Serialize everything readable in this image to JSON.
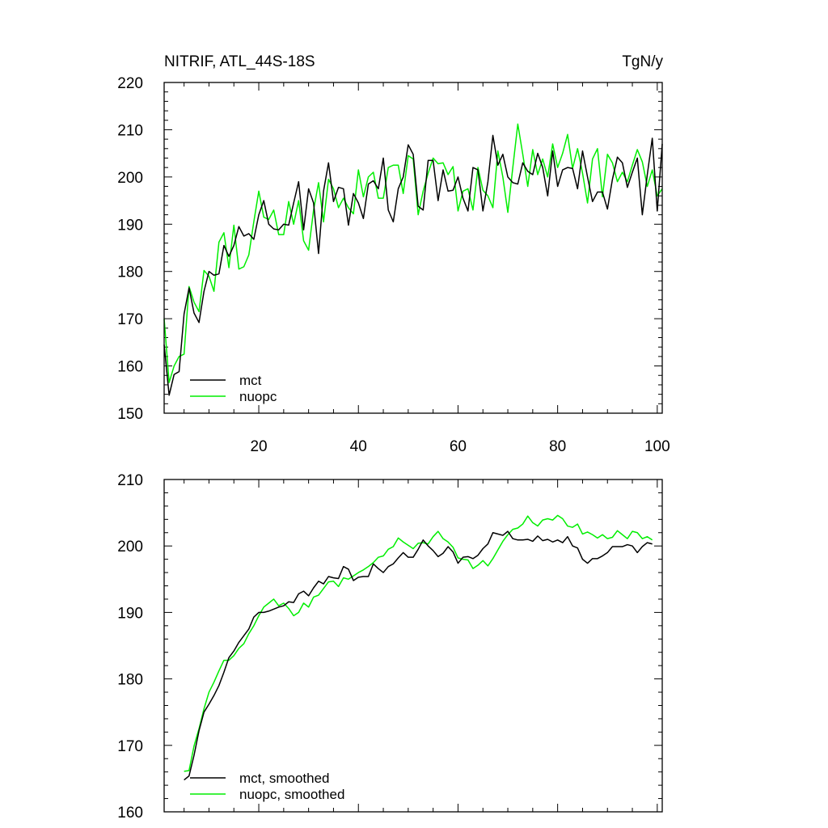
{
  "chart_data": [
    {
      "type": "line",
      "title": "NITRIF, ATL_44S-18S",
      "units": "TgN/y",
      "xlim": [
        1,
        101
      ],
      "ylim": [
        150,
        220
      ],
      "xticks": [
        20,
        40,
        60,
        80,
        100
      ],
      "yticks": [
        150,
        160,
        170,
        180,
        190,
        200,
        210,
        220
      ],
      "xticklabels": [
        "20",
        "40",
        "60",
        "80",
        "100"
      ],
      "yticklabels": [
        "150",
        "160",
        "170",
        "180",
        "190",
        "200",
        "210",
        "220"
      ],
      "legend_position": "bottom-left",
      "series": [
        {
          "name": "mct",
          "color": "#000000",
          "x": [
            1,
            2,
            3,
            4,
            5,
            6,
            7,
            8,
            9,
            10,
            11,
            12,
            13,
            14,
            15,
            16,
            17,
            18,
            19,
            20,
            21,
            22,
            23,
            24,
            25,
            26,
            27,
            28,
            29,
            30,
            31,
            32,
            33,
            34,
            35,
            36,
            37,
            38,
            39,
            40,
            41,
            42,
            43,
            44,
            45,
            46,
            47,
            48,
            49,
            50,
            51,
            52,
            53,
            54,
            55,
            56,
            57,
            58,
            59,
            60,
            61,
            62,
            63,
            64,
            65,
            66,
            67,
            68,
            69,
            70,
            71,
            72,
            73,
            74,
            75,
            76,
            77,
            78,
            79,
            80,
            81,
            82,
            83,
            84,
            85,
            86,
            87,
            88,
            89,
            90,
            91,
            92,
            93,
            94,
            95,
            96,
            97,
            98,
            99,
            100,
            101
          ],
          "values": [
            164.5,
            153.8,
            158.2,
            158.8,
            171.0,
            176.5,
            171.2,
            169.2,
            175.8,
            180.0,
            179.2,
            179.5,
            185.5,
            183.2,
            185.5,
            189.5,
            187.5,
            188.0,
            186.8,
            192.0,
            195.0,
            190.0,
            189.0,
            188.8,
            190.0,
            189.8,
            194.5,
            199.0,
            188.8,
            197.5,
            194.5,
            183.8,
            197.0,
            203.0,
            194.8,
            197.8,
            197.5,
            189.8,
            196.5,
            194.5,
            191.2,
            198.5,
            199.2,
            197.5,
            204.0,
            193.0,
            190.5,
            197.5,
            200.0,
            206.8,
            204.8,
            193.8,
            193.0,
            203.5,
            203.5,
            195.0,
            201.5,
            197.0,
            197.2,
            200.0,
            195.5,
            192.8,
            202.0,
            201.5,
            192.8,
            199.0,
            208.8,
            202.5,
            204.8,
            200.0,
            198.8,
            198.5,
            203.0,
            201.2,
            200.5,
            205.0,
            202.0,
            196.0,
            205.5,
            198.0,
            201.5,
            202.0,
            201.8,
            197.5,
            205.5,
            200.0,
            194.8,
            196.8,
            196.8,
            193.2,
            199.5,
            204.2,
            203.0,
            197.8,
            201.0,
            204.0,
            192.0,
            200.5,
            208.2,
            192.8,
            207.0
          ]
        },
        {
          "name": "nuopc",
          "color": "#00ee00",
          "x": [
            1,
            2,
            3,
            4,
            5,
            6,
            7,
            8,
            9,
            10,
            11,
            12,
            13,
            14,
            15,
            16,
            17,
            18,
            19,
            20,
            21,
            22,
            23,
            24,
            25,
            26,
            27,
            28,
            29,
            30,
            31,
            32,
            33,
            34,
            35,
            36,
            37,
            38,
            39,
            40,
            41,
            42,
            43,
            44,
            45,
            46,
            47,
            48,
            49,
            50,
            51,
            52,
            53,
            54,
            55,
            56,
            57,
            58,
            59,
            60,
            61,
            62,
            63,
            64,
            65,
            66,
            67,
            68,
            69,
            70,
            71,
            72,
            73,
            74,
            75,
            76,
            77,
            78,
            79,
            80,
            81,
            82,
            83,
            84,
            85,
            86,
            87,
            88,
            89,
            90,
            91,
            92,
            93,
            94,
            95,
            96,
            97,
            98,
            99,
            100,
            101
          ],
          "values": [
            170.0,
            156.5,
            160.0,
            162.0,
            162.5,
            176.8,
            173.5,
            171.5,
            180.2,
            179.0,
            175.8,
            186.2,
            188.2,
            180.8,
            189.8,
            180.5,
            181.0,
            183.5,
            190.5,
            197.0,
            191.5,
            191.0,
            193.0,
            187.8,
            187.8,
            194.8,
            190.0,
            195.0,
            186.5,
            184.5,
            193.0,
            198.8,
            190.5,
            199.5,
            197.5,
            193.5,
            195.5,
            193.5,
            192.2,
            201.5,
            195.8,
            200.0,
            201.0,
            195.5,
            195.5,
            202.0,
            202.5,
            202.5,
            196.5,
            204.5,
            203.8,
            192.0,
            197.0,
            200.8,
            204.0,
            202.8,
            203.0,
            200.5,
            202.2,
            192.8,
            197.0,
            197.5,
            193.0,
            202.0,
            197.2,
            196.0,
            193.5,
            205.5,
            200.0,
            192.5,
            202.0,
            211.2,
            204.8,
            198.0,
            205.8,
            200.5,
            203.8,
            200.0,
            207.0,
            202.0,
            205.0,
            209.0,
            201.8,
            206.0,
            200.8,
            194.5,
            203.8,
            206.0,
            195.8,
            204.8,
            203.0,
            199.0,
            201.0,
            199.0,
            202.5,
            205.8,
            203.2,
            198.0,
            201.5,
            196.0,
            197.5
          ]
        }
      ]
    },
    {
      "type": "line",
      "title": "",
      "xlim": [
        1,
        101
      ],
      "ylim": [
        160,
        210
      ],
      "xticks": [
        20,
        40,
        60,
        80,
        100
      ],
      "yticks": [
        160,
        170,
        180,
        190,
        200,
        210
      ],
      "yticklabels": [
        "160",
        "170",
        "180",
        "190",
        "200",
        "210"
      ],
      "legend_position": "bottom-left",
      "series": [
        {
          "name": "mct, smoothed",
          "color": "#000000",
          "x": [
            5,
            6,
            7,
            8,
            9,
            10,
            11,
            12,
            13,
            14,
            15,
            16,
            17,
            18,
            19,
            20,
            21,
            22,
            23,
            24,
            25,
            26,
            27,
            28,
            29,
            30,
            31,
            32,
            33,
            34,
            35,
            36,
            37,
            38,
            39,
            40,
            41,
            42,
            43,
            44,
            45,
            46,
            47,
            48,
            49,
            50,
            51,
            52,
            53,
            54,
            55,
            56,
            57,
            58,
            59,
            60,
            61,
            62,
            63,
            64,
            65,
            66,
            67,
            68,
            69,
            70,
            71,
            72,
            73,
            74,
            75,
            76,
            77,
            78,
            79,
            80,
            81,
            82,
            83,
            84,
            85,
            86,
            87,
            88,
            89,
            90,
            91,
            92,
            93,
            94,
            95,
            96,
            97,
            98,
            99
          ],
          "values": [
            164.8,
            165.4,
            168.5,
            172.2,
            175.0,
            176.2,
            177.5,
            179.0,
            181.0,
            183.2,
            184.2,
            185.5,
            186.5,
            187.5,
            189.3,
            190.0,
            190.0,
            190.2,
            190.5,
            190.8,
            191.0,
            191.6,
            191.5,
            192.8,
            193.2,
            192.5,
            193.7,
            194.7,
            194.3,
            195.4,
            195.2,
            195.1,
            196.9,
            196.5,
            194.8,
            195.3,
            195.4,
            195.4,
            197.3,
            196.6,
            196.0,
            196.9,
            197.3,
            198.2,
            199.0,
            198.3,
            198.3,
            199.5,
            200.9,
            200.0,
            199.3,
            198.4,
            198.9,
            199.9,
            199.1,
            197.4,
            198.3,
            198.4,
            198.1,
            198.6,
            199.6,
            200.3,
            202.0,
            201.8,
            201.6,
            202.2,
            201.1,
            200.9,
            200.9,
            201.0,
            200.7,
            201.5,
            200.8,
            201.0,
            200.6,
            200.9,
            200.5,
            201.4,
            200.0,
            199.7,
            198.0,
            197.4,
            198.1,
            198.1,
            198.5,
            199.0,
            199.9,
            199.9,
            199.9,
            200.2,
            200.0,
            199.0,
            199.9,
            200.5,
            200.3
          ]
        },
        {
          "name": "nuopc, smoothed",
          "color": "#00ee00",
          "x": [
            5,
            6,
            7,
            8,
            9,
            10,
            11,
            12,
            13,
            14,
            15,
            16,
            17,
            18,
            19,
            20,
            21,
            22,
            23,
            24,
            25,
            26,
            27,
            28,
            29,
            30,
            31,
            32,
            33,
            34,
            35,
            36,
            37,
            38,
            39,
            40,
            41,
            42,
            43,
            44,
            45,
            46,
            47,
            48,
            49,
            50,
            51,
            52,
            53,
            54,
            55,
            56,
            57,
            58,
            59,
            60,
            61,
            62,
            63,
            64,
            65,
            66,
            67,
            68,
            69,
            70,
            71,
            72,
            73,
            74,
            75,
            76,
            77,
            78,
            79,
            80,
            81,
            82,
            83,
            84,
            85,
            86,
            87,
            88,
            89,
            90,
            91,
            92,
            93,
            94,
            95,
            96,
            97,
            98,
            99
          ],
          "values": [
            166.1,
            166.2,
            169.9,
            172.5,
            175.5,
            178.0,
            179.5,
            181.2,
            182.8,
            182.8,
            183.5,
            184.6,
            185.3,
            186.8,
            188.0,
            189.5,
            190.8,
            191.4,
            192.0,
            191.0,
            191.4,
            190.6,
            189.5,
            190.0,
            191.4,
            190.8,
            192.3,
            192.6,
            193.6,
            194.6,
            194.7,
            193.9,
            195.2,
            195.0,
            195.5,
            196.0,
            196.4,
            196.9,
            197.5,
            198.3,
            198.5,
            199.5,
            199.9,
            201.2,
            200.6,
            200.1,
            199.6,
            200.4,
            200.5,
            200.3,
            201.4,
            202.2,
            201.1,
            200.6,
            199.8,
            198.2,
            198.0,
            197.9,
            196.6,
            197.1,
            197.8,
            197.0,
            198.1,
            199.4,
            200.7,
            201.7,
            202.5,
            202.7,
            203.3,
            204.5,
            203.5,
            203.0,
            203.9,
            204.1,
            203.9,
            204.6,
            204.1,
            203.0,
            202.8,
            203.3,
            201.8,
            202.1,
            201.7,
            201.2,
            201.7,
            201.1,
            201.3,
            202.3,
            201.7,
            201.1,
            202.2,
            202.0,
            201.1,
            201.4,
            200.9
          ]
        }
      ]
    }
  ]
}
